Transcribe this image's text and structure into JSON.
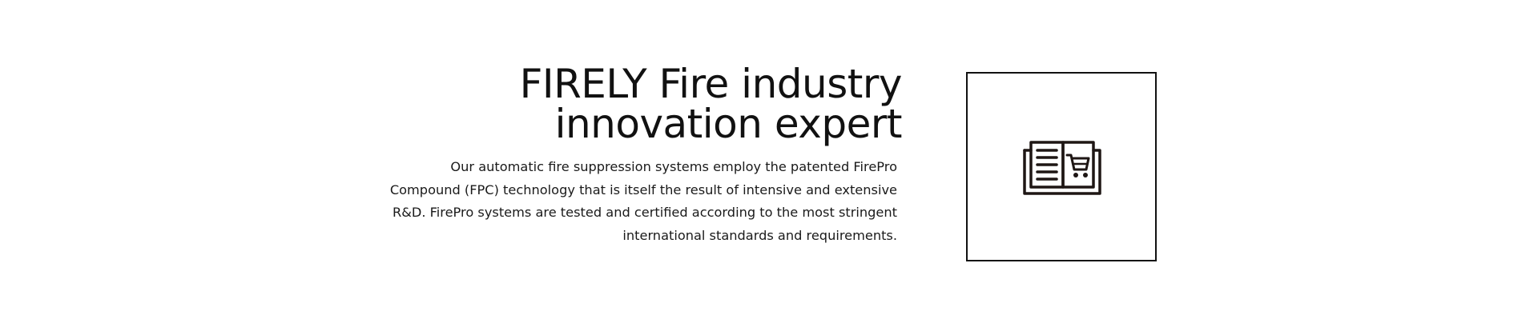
{
  "hero": {
    "title_line_1": "FIRELY Fire industry",
    "title_line_2": "innovation expert",
    "description": "Our automatic fire suppression systems employ the patented FirePro Compound (FPC) technology that is itself the result of intensive and extensive R&D. FirePro systems are tested and certified according to the most stringent international standards and requirements."
  },
  "feature_card": {
    "icon": "catalog-cart-icon"
  },
  "colors": {
    "text": "#111111",
    "icon": "#1e1614",
    "border": "#111111",
    "background": "#ffffff"
  }
}
